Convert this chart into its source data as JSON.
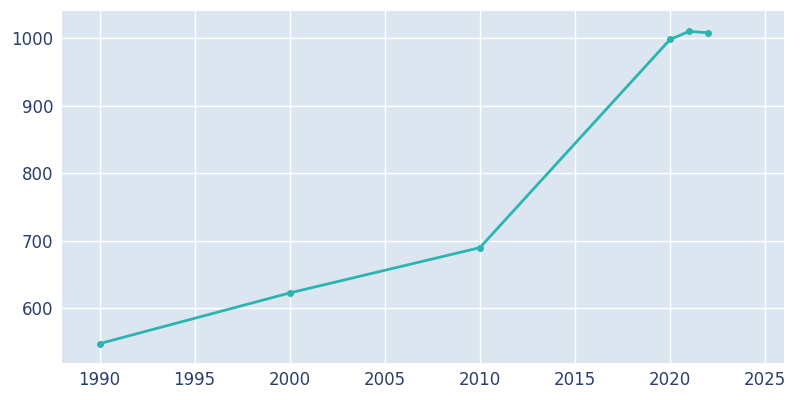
{
  "years": [
    1990,
    2000,
    2010,
    2020,
    2021,
    2022
  ],
  "population": [
    548,
    623,
    690,
    998,
    1010,
    1008
  ],
  "line_color": "#2ab5b0",
  "marker": "o",
  "marker_size": 4,
  "axes_background_color": "#dce6f0",
  "figure_background_color": "#ffffff",
  "grid_color": "#ffffff",
  "text_color": "#2c3e6b",
  "xlim": [
    1988,
    2026
  ],
  "ylim": [
    520,
    1040
  ],
  "xticks": [
    1990,
    1995,
    2000,
    2005,
    2010,
    2015,
    2020,
    2025
  ],
  "yticks": [
    600,
    700,
    800,
    900,
    1000
  ],
  "linewidth": 2.0,
  "tick_labelsize": 12
}
